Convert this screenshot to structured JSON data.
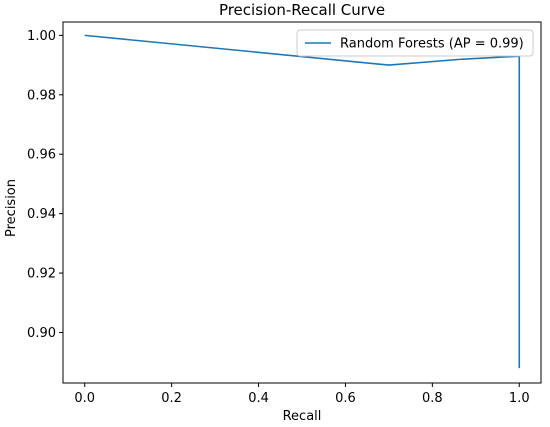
{
  "chart_data": {
    "type": "line",
    "title": "Precision-Recall Curve",
    "xlabel": "Recall",
    "ylabel": "Precision",
    "xlim": [
      -0.05,
      1.05
    ],
    "ylim": [
      0.883,
      1.0045
    ],
    "xticks": [
      0.0,
      0.2,
      0.4,
      0.6,
      0.8,
      1.0
    ],
    "xtick_labels": [
      "0.0",
      "0.2",
      "0.4",
      "0.6",
      "0.8",
      "1.0"
    ],
    "yticks": [
      0.9,
      0.92,
      0.94,
      0.96,
      0.98,
      1.0
    ],
    "ytick_labels": [
      "0.90",
      "0.92",
      "0.94",
      "0.96",
      "0.98",
      "1.00"
    ],
    "grid": false,
    "legend_position": "top-right",
    "series": [
      {
        "name": "Random Forests (AP = 0.99)",
        "color": "#1f77b4",
        "x": [
          0.0,
          0.7,
          0.87,
          1.0,
          1.0
        ],
        "y": [
          1.0,
          0.99,
          0.992,
          0.993,
          0.888
        ]
      }
    ]
  }
}
